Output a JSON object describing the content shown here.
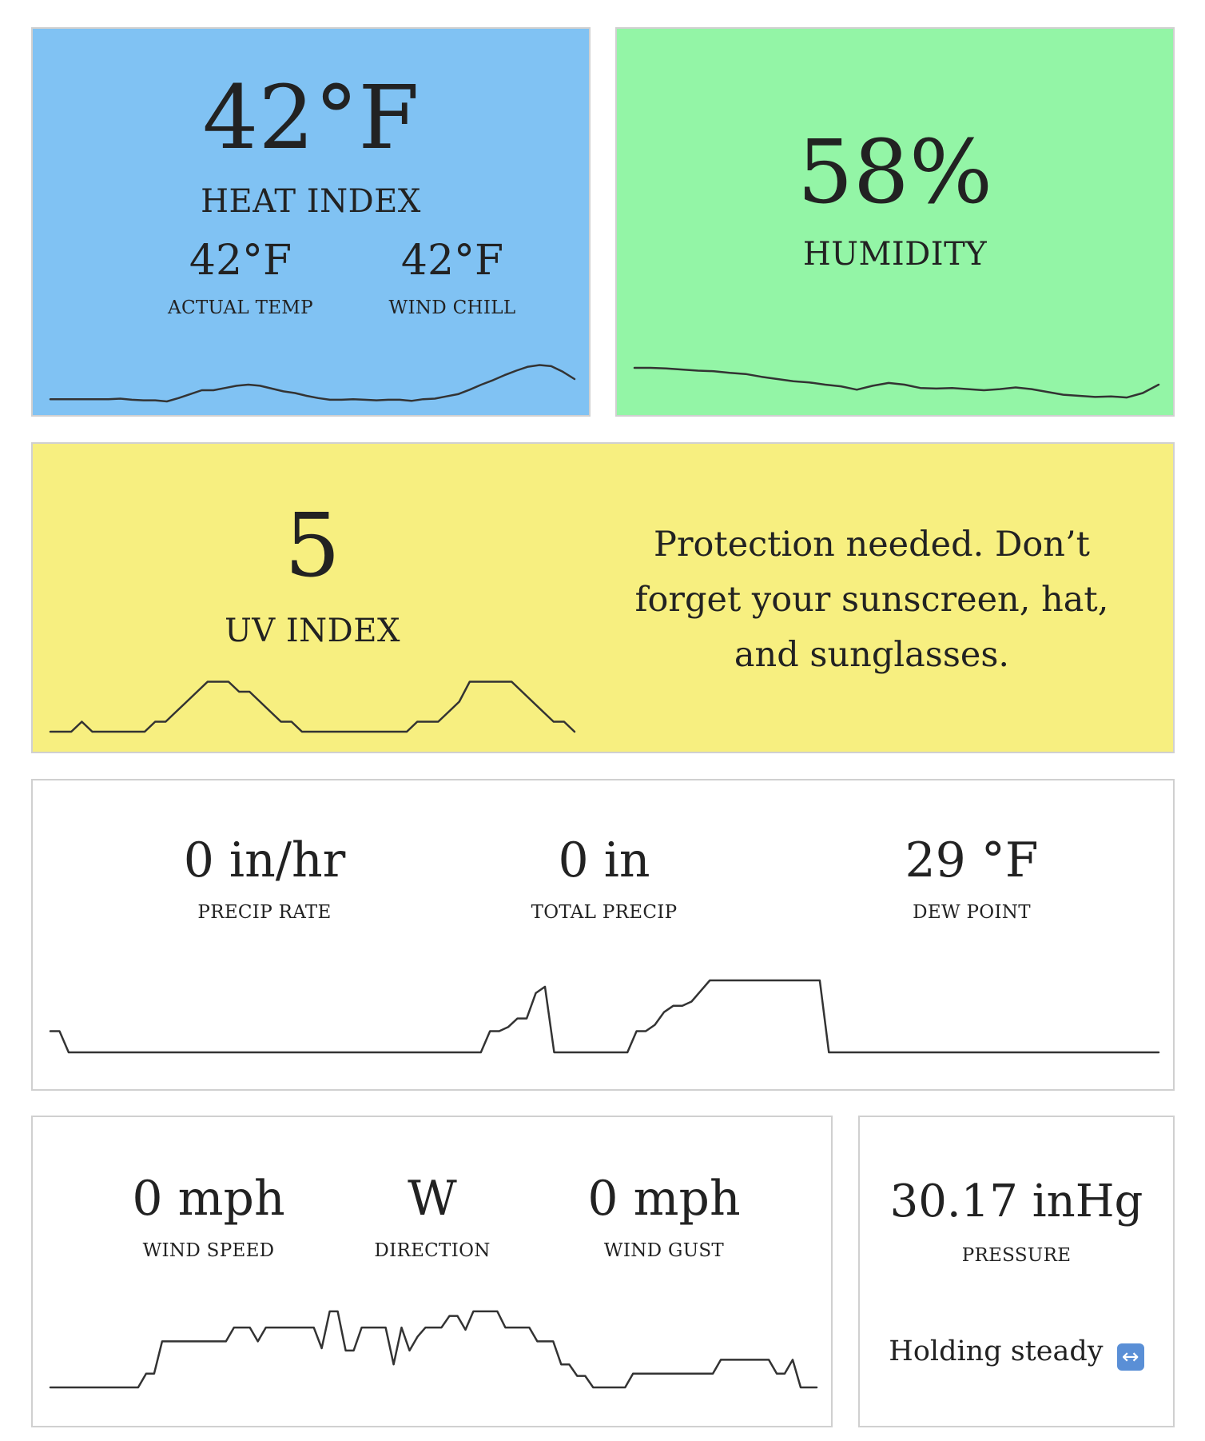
{
  "colors": {
    "heat_bg": "#80c2f3",
    "humidity_bg": "#93f5a6",
    "uv_bg": "#f7ef80",
    "white_bg": "#ffffff",
    "line": "#333333"
  },
  "heat": {
    "value": "42°F",
    "label": "HEAT INDEX",
    "actual_value": "42°F",
    "actual_label": "ACTUAL TEMP",
    "chill_value": "42°F",
    "chill_label": "WIND CHILL",
    "trend": [
      38.4,
      38.4,
      38.4,
      38.4,
      38.4,
      38.4,
      38.5,
      38.3,
      38.2,
      38.2,
      38.0,
      38.6,
      39.3,
      40.0,
      40.0,
      40.4,
      40.8,
      41.0,
      40.8,
      40.3,
      39.8,
      39.5,
      39.0,
      38.6,
      38.3,
      38.3,
      38.4,
      38.3,
      38.2,
      38.3,
      38.3,
      38.1,
      38.4,
      38.5,
      38.9,
      39.3,
      40.1,
      41.0,
      41.8,
      42.7,
      43.5,
      44.2,
      44.5,
      44.3,
      43.3,
      42.0
    ]
  },
  "humidity": {
    "value": "58%",
    "label": "HUMIDITY",
    "trend": [
      52.0,
      52.0,
      51.9,
      51.7,
      51.5,
      51.4,
      51.1,
      50.9,
      50.4,
      50.0,
      49.6,
      49.4,
      49.0,
      48.7,
      48.1,
      48.8,
      49.3,
      49.0,
      48.4,
      48.3,
      48.4,
      48.2,
      48.0,
      48.2,
      48.5,
      48.2,
      47.7,
      47.2,
      47.0,
      46.8,
      46.9,
      46.7,
      47.5,
      49.0
    ]
  },
  "uv": {
    "value": "5",
    "label": "UV INDEX",
    "message": "Protection needed. Don’t forget your sunscreen, hat, and sunglasses.",
    "trend": [
      0,
      0,
      0,
      1,
      0,
      0,
      0,
      0,
      0,
      0,
      1,
      1,
      2,
      3,
      4,
      5,
      5,
      5,
      4,
      4,
      3,
      2,
      1,
      1,
      0,
      0,
      0,
      0,
      0,
      0,
      0,
      0,
      0,
      0,
      0,
      1,
      1,
      1,
      2,
      3,
      5,
      5,
      5,
      5,
      5,
      4,
      3,
      2,
      1,
      1,
      0
    ]
  },
  "precip": {
    "rate_value": "0 in/hr",
    "rate_label": "PRECIP RATE",
    "total_value": "0 in",
    "total_label": "TOTAL PRECIP",
    "dew_value": "29 °F",
    "dew_label": "DEW POINT",
    "trend": [
      1,
      1,
      0,
      0,
      0,
      0,
      0,
      0,
      0,
      0,
      0,
      0,
      0,
      0,
      0,
      0,
      0,
      0,
      0,
      0,
      0,
      0,
      0,
      0,
      0,
      0,
      0,
      0,
      0,
      0,
      0,
      0,
      0,
      0,
      0,
      0,
      0,
      0,
      0,
      0,
      0,
      0,
      0,
      0,
      0,
      0,
      0,
      0,
      1,
      1,
      1.2,
      1.6,
      1.6,
      2.8,
      3.1,
      0,
      0,
      0,
      0,
      0,
      0,
      0,
      0,
      0,
      1,
      1,
      1.3,
      1.9,
      2.2,
      2.2,
      2.4,
      2.9,
      3.4,
      3.4,
      3.4,
      3.4,
      3.4,
      3.4,
      3.4,
      3.4,
      3.4,
      3.4,
      3.4,
      3.4,
      3.4,
      0,
      0,
      0,
      0,
      0,
      0,
      0,
      0,
      0,
      0,
      0,
      0,
      0,
      0,
      0,
      0,
      0,
      0,
      0,
      0,
      0,
      0,
      0,
      0,
      0,
      0,
      0,
      0,
      0,
      0,
      0,
      0,
      0,
      0,
      0,
      0,
      0
    ]
  },
  "wind": {
    "speed_value": "0 mph",
    "speed_label": "WIND SPEED",
    "direction_value": "W",
    "direction_label": "DIRECTION",
    "gust_value": "0 mph",
    "gust_label": "WIND GUST",
    "trend": [
      0,
      0,
      0,
      0,
      0,
      0,
      0,
      0,
      0,
      0,
      0,
      0,
      0.6,
      0.6,
      2,
      2,
      2,
      2,
      2,
      2,
      2,
      2,
      2,
      2.6,
      2.6,
      2.6,
      2,
      2.6,
      2.6,
      2.6,
      2.6,
      2.6,
      2.6,
      2.6,
      1.7,
      3.3,
      3.3,
      1.6,
      1.6,
      2.6,
      2.6,
      2.6,
      2.6,
      1,
      2.6,
      1.6,
      2.2,
      2.6,
      2.6,
      2.6,
      3.1,
      3.1,
      2.5,
      3.3,
      3.3,
      3.3,
      3.3,
      2.6,
      2.6,
      2.6,
      2.6,
      2,
      2,
      2,
      1,
      1,
      0.5,
      0.5,
      0,
      0,
      0,
      0,
      0,
      0.6,
      0.6,
      0.6,
      0.6,
      0.6,
      0.6,
      0.6,
      0.6,
      0.6,
      0.6,
      0.6,
      1.2,
      1.2,
      1.2,
      1.2,
      1.2,
      1.2,
      1.2,
      0.6,
      0.6,
      1.2,
      0,
      0,
      0
    ]
  },
  "pressure": {
    "value": "30.17 inHg",
    "label": "PRESSURE",
    "trend_text": "Holding steady",
    "trend_icon": "left-right-arrow-icon"
  }
}
